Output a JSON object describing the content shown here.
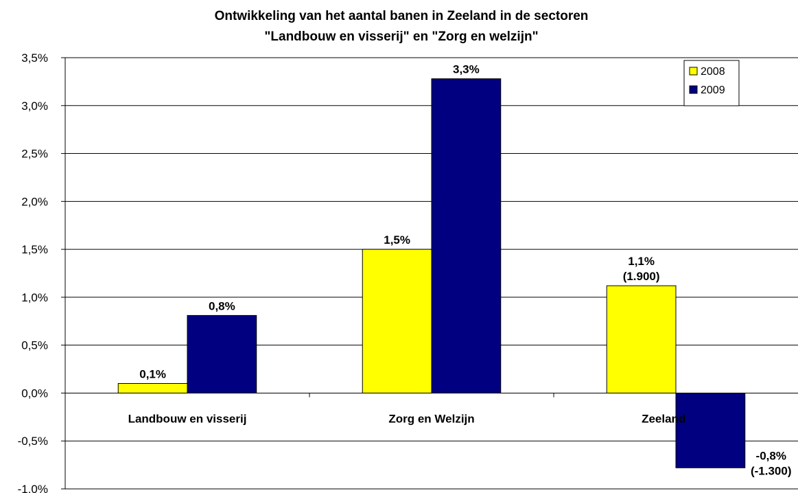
{
  "chart_data": {
    "type": "bar",
    "title_line1": "Ontwikkeling van het aantal banen in Zeeland in de sectoren",
    "title_line2": "\"Landbouw en visserij\" en \"Zorg en welzijn\"",
    "categories": [
      "Landbouw en visserij",
      "Zorg en Welzijn",
      "Zeeland"
    ],
    "series": [
      {
        "name": "2008",
        "color": "#ffff00",
        "values": [
          0.1,
          1.5,
          1.12
        ],
        "labels": [
          [
            "0,1%"
          ],
          [
            "1,5%"
          ],
          [
            "1,1%",
            "(1.900)"
          ]
        ]
      },
      {
        "name": "2009",
        "color": "#000080",
        "values": [
          0.81,
          3.28,
          -0.78
        ],
        "labels": [
          [
            "0,8%"
          ],
          [
            "3,3%"
          ],
          [
            "-0,8%",
            "(-1.300)"
          ]
        ]
      }
    ],
    "ylim": [
      -1.0,
      3.5
    ],
    "y_ticks": [
      -1.0,
      -0.5,
      0.0,
      0.5,
      1.0,
      1.5,
      2.0,
      2.5,
      3.0,
      3.5
    ],
    "y_tick_labels": [
      "-1,0%",
      "-0,5%",
      "0,0%",
      "0,5%",
      "1,0%",
      "1,5%",
      "2,0%",
      "2,5%",
      "3,0%",
      "3,5%"
    ],
    "grid": true,
    "legend_position": "top-right",
    "xlabel": "",
    "ylabel": ""
  }
}
